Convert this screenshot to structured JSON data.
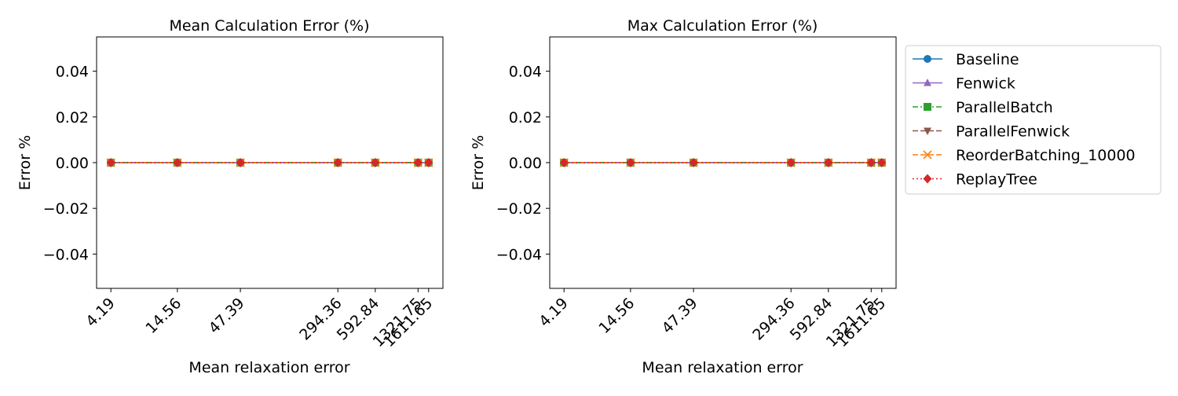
{
  "chart_data": [
    {
      "type": "line",
      "title": "Mean Calculation Error (%)",
      "xlabel": "Mean relaxation error",
      "ylabel": "Error %",
      "x_scale": "log",
      "x": [
        4.19,
        14.56,
        47.39,
        294.36,
        592.84,
        1321.75,
        1611.65
      ],
      "x_tick_labels": [
        "4.19",
        "14.56",
        "47.39",
        "294.36",
        "592.84",
        "1321.75",
        "1611.65"
      ],
      "ylim": [
        -0.055,
        0.055
      ],
      "y_ticks": [
        -0.04,
        -0.02,
        0.0,
        0.02,
        0.04
      ],
      "y_tick_labels": [
        "−0.04",
        "−0.02",
        "0.00",
        "0.02",
        "0.04"
      ],
      "grid": false,
      "series": [
        {
          "name": "Baseline",
          "values": [
            0,
            0,
            0,
            0,
            0,
            0,
            0
          ]
        },
        {
          "name": "Fenwick",
          "values": [
            0,
            0,
            0,
            0,
            0,
            0,
            0
          ]
        },
        {
          "name": "ParallelBatch",
          "values": [
            0,
            0,
            0,
            0,
            0,
            0,
            0
          ]
        },
        {
          "name": "ParallelFenwick",
          "values": [
            0,
            0,
            0,
            0,
            0,
            0,
            0
          ]
        },
        {
          "name": "ReorderBatching_10000",
          "values": [
            0,
            0,
            0,
            0,
            0,
            0,
            0
          ]
        },
        {
          "name": "ReplayTree",
          "values": [
            0,
            0,
            0,
            0,
            0,
            0,
            0
          ]
        }
      ]
    },
    {
      "type": "line",
      "title": "Max Calculation Error (%)",
      "xlabel": "Mean relaxation error",
      "ylabel": "Error %",
      "x_scale": "log",
      "x": [
        4.19,
        14.56,
        47.39,
        294.36,
        592.84,
        1321.75,
        1611.65
      ],
      "x_tick_labels": [
        "4.19",
        "14.56",
        "47.39",
        "294.36",
        "592.84",
        "1321.75",
        "1611.65"
      ],
      "ylim": [
        -0.055,
        0.055
      ],
      "y_ticks": [
        -0.04,
        -0.02,
        0.0,
        0.02,
        0.04
      ],
      "y_tick_labels": [
        "−0.04",
        "−0.02",
        "0.00",
        "0.02",
        "0.04"
      ],
      "grid": false,
      "legend_position": "outside-right-top",
      "series": [
        {
          "name": "Baseline",
          "values": [
            0,
            0,
            0,
            0,
            0,
            0,
            0
          ]
        },
        {
          "name": "Fenwick",
          "values": [
            0,
            0,
            0,
            0,
            0,
            0,
            0
          ]
        },
        {
          "name": "ParallelBatch",
          "values": [
            0,
            0,
            0,
            0,
            0,
            0,
            0
          ]
        },
        {
          "name": "ParallelFenwick",
          "values": [
            0,
            0,
            0,
            0,
            0,
            0,
            0
          ]
        },
        {
          "name": "ReorderBatching_10000",
          "values": [
            0,
            0,
            0,
            0,
            0,
            0,
            0
          ]
        },
        {
          "name": "ReplayTree",
          "values": [
            0,
            0,
            0,
            0,
            0,
            0,
            0
          ]
        }
      ]
    }
  ],
  "legend": {
    "entries": [
      "Baseline",
      "Fenwick",
      "ParallelBatch",
      "ParallelFenwick",
      "ReorderBatching_10000",
      "ReplayTree"
    ]
  },
  "series_styles": [
    {
      "color": "#1f77b4",
      "marker": "circle",
      "dash": "solid"
    },
    {
      "color": "#9467bd",
      "marker": "triangle-up",
      "dash": "solid"
    },
    {
      "color": "#2ca02c",
      "marker": "square",
      "dash": "dashdot"
    },
    {
      "color": "#8c564b",
      "marker": "triangle-down",
      "dash": "dashed"
    },
    {
      "color": "#ff7f0e",
      "marker": "x",
      "dash": "dashed"
    },
    {
      "color": "#d62728",
      "marker": "diamond",
      "dash": "dotted"
    }
  ]
}
